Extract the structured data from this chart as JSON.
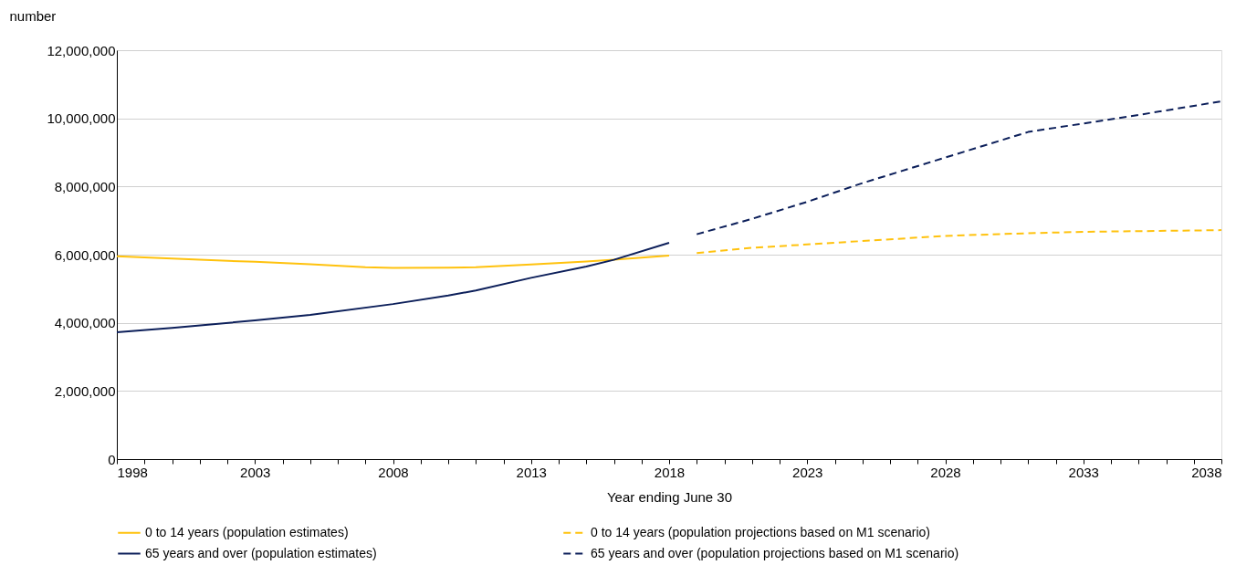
{
  "chart_data": {
    "type": "line",
    "ylabel": "number",
    "xlabel": "Year ending June 30",
    "xlim": [
      1998,
      2038
    ],
    "ylim": [
      0,
      12000000
    ],
    "yticks": [
      0,
      {
        "value": 2000000,
        "label": "2,000,000"
      },
      {
        "value": 4000000,
        "label": "4,000,000"
      },
      {
        "value": 6000000,
        "label": "6,000,000"
      },
      {
        "value": 8000000,
        "label": "8,000,000"
      },
      {
        "value": 10000000,
        "label": "10,000,000"
      },
      {
        "value": 12000000,
        "label": "12,000,000"
      }
    ],
    "xticks": [
      1998,
      {
        "value": 1999,
        "label": null
      },
      {
        "value": 2000,
        "label": null
      },
      {
        "value": 2001,
        "label": null
      },
      {
        "value": 2002,
        "label": null
      },
      2003,
      {
        "value": 2004,
        "label": null
      },
      {
        "value": 2005,
        "label": null
      },
      {
        "value": 2006,
        "label": null
      },
      {
        "value": 2007,
        "label": null
      },
      2008,
      {
        "value": 2009,
        "label": null
      },
      {
        "value": 2010,
        "label": null
      },
      {
        "value": 2011,
        "label": null
      },
      {
        "value": 2012,
        "label": null
      },
      2013,
      {
        "value": 2014,
        "label": null
      },
      {
        "value": 2015,
        "label": null
      },
      {
        "value": 2016,
        "label": null
      },
      {
        "value": 2017,
        "label": null
      },
      2018,
      {
        "value": 2019,
        "label": null
      },
      {
        "value": 2020,
        "label": null
      },
      {
        "value": 2021,
        "label": null
      },
      {
        "value": 2022,
        "label": null
      },
      2023,
      {
        "value": 2024,
        "label": null
      },
      {
        "value": 2025,
        "label": null
      },
      {
        "value": 2026,
        "label": null
      },
      {
        "value": 2027,
        "label": null
      },
      2028,
      {
        "value": 2029,
        "label": null
      },
      {
        "value": 2030,
        "label": null
      },
      {
        "value": 2031,
        "label": null
      },
      {
        "value": 2032,
        "label": null
      },
      2033,
      {
        "value": 2034,
        "label": null
      },
      {
        "value": 2035,
        "label": null
      },
      {
        "value": 2036,
        "label": null
      },
      {
        "value": 2037,
        "label": null
      },
      2038
    ],
    "grid": "y",
    "legend": "bottom",
    "marker": "none",
    "series": [
      {
        "name": "0 to 14 years (population estimates)",
        "color": "#ffc20e",
        "line_style": "solid",
        "x": [
          1998,
          2001,
          2003,
          2005,
          2007,
          2008,
          2010,
          2011,
          2013,
          2015,
          2016,
          2018
        ],
        "values": [
          5950000,
          5850000,
          5790000,
          5720000,
          5630000,
          5610000,
          5620000,
          5630000,
          5710000,
          5800000,
          5850000,
          5970000
        ]
      },
      {
        "name": "0 to 14 years (population projections based on M1 scenario)",
        "color": "#ffc20e",
        "line_style": "dashed",
        "x": [
          2019,
          2021,
          2023,
          2025,
          2028,
          2031,
          2033,
          2036,
          2038
        ],
        "values": [
          6050000,
          6200000,
          6300000,
          6400000,
          6550000,
          6630000,
          6670000,
          6700000,
          6720000
        ]
      },
      {
        "name": "65 years and over (population estimates)",
        "color": "#0c1f5a",
        "line_style": "solid",
        "x": [
          1998,
          2000,
          2003,
          2005,
          2008,
          2010,
          2011,
          2013,
          2015,
          2016,
          2018
        ],
        "values": [
          3720000,
          3850000,
          4070000,
          4230000,
          4550000,
          4800000,
          4950000,
          5320000,
          5650000,
          5850000,
          6350000
        ]
      },
      {
        "name": "65 years and over (population projections based on M1 scenario)",
        "color": "#0c1f5a",
        "line_style": "dashed",
        "x": [
          2019,
          2021,
          2023,
          2025,
          2028,
          2030,
          2031,
          2033,
          2035,
          2038
        ],
        "values": [
          6600000,
          7050000,
          7550000,
          8100000,
          8850000,
          9350000,
          9600000,
          9850000,
          10100000,
          10500000
        ]
      }
    ]
  }
}
